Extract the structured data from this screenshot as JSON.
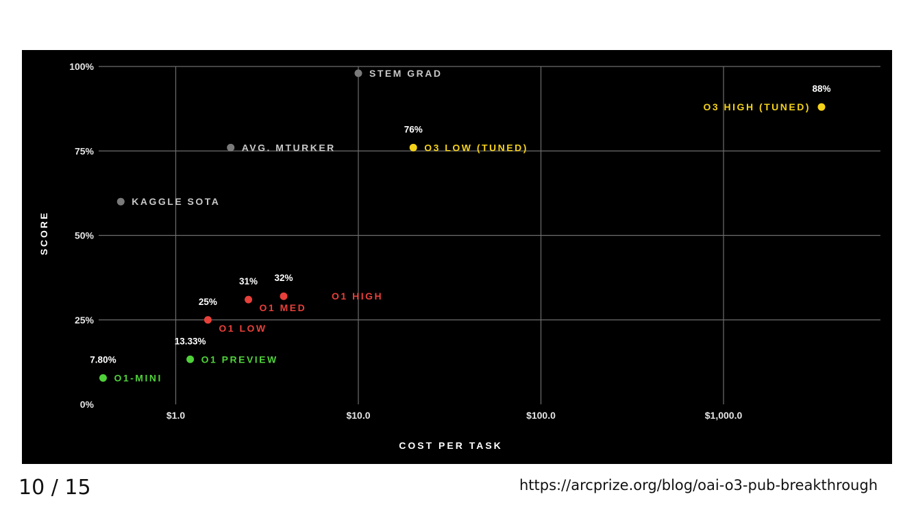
{
  "footer": {
    "slide_number": "10 / 15",
    "source_url": "https://arcprize.org/blog/oai-o3-pub-breakthrough"
  },
  "chart_data": {
    "type": "scatter",
    "title": "",
    "xlabel": "COST PER TASK",
    "ylabel": "SCORE",
    "x_scale": "log",
    "xlim": [
      0.4,
      8000
    ],
    "ylim": [
      0,
      100
    ],
    "x_ticks": [
      1,
      10,
      100,
      1000
    ],
    "x_tick_labels": [
      "$1.0",
      "$10.0",
      "$100.0",
      "$1,000.0"
    ],
    "y_ticks": [
      0,
      25,
      50,
      75,
      100
    ],
    "y_tick_labels": [
      "0%",
      "25%",
      "50%",
      "75%",
      "100%"
    ],
    "grid": true,
    "colors": {
      "background": "#000000",
      "grid": "#6e6e6e",
      "human": "#7a7a7a",
      "human_label": "#c8c8c8",
      "o1_preview_mini": "#4fd13a",
      "o1": "#e8403a",
      "o3": "#f5d21a"
    },
    "points": [
      {
        "name": "STEM GRAD",
        "x": 10,
        "y": 98,
        "value_label": "",
        "color": "#7a7a7a",
        "label_color": "#c8c8c8",
        "label_pos": "right"
      },
      {
        "name": "AVG. MTURKER",
        "x": 2,
        "y": 76,
        "value_label": "",
        "color": "#7a7a7a",
        "label_color": "#c8c8c8",
        "label_pos": "right"
      },
      {
        "name": "KAGGLE SOTA",
        "x": 0.5,
        "y": 60,
        "value_label": "",
        "color": "#7a7a7a",
        "label_color": "#c8c8c8",
        "label_pos": "right"
      },
      {
        "name": "O3 HIGH (TUNED)",
        "x": 3440,
        "y": 88,
        "value_label": "88%",
        "color": "#f5d21a",
        "label_color": "#f5d21a",
        "label_pos": "left"
      },
      {
        "name": "O3 LOW (TUNED)",
        "x": 20,
        "y": 76,
        "value_label": "76%",
        "color": "#f5d21a",
        "label_color": "#f5d21a",
        "label_pos": "right"
      },
      {
        "name": "O1 HIGH",
        "x": 3.9,
        "y": 32,
        "value_label": "32%",
        "color": "#e8403a",
        "label_color": "#e8403a",
        "label_pos": "far-right"
      },
      {
        "name": "O1 MED",
        "x": 2.5,
        "y": 31,
        "value_label": "31%",
        "color": "#e8403a",
        "label_color": "#e8403a",
        "label_pos": "below-right"
      },
      {
        "name": "O1 LOW",
        "x": 1.5,
        "y": 25,
        "value_label": "25%",
        "color": "#e8403a",
        "label_color": "#e8403a",
        "label_pos": "below-right"
      },
      {
        "name": "O1 PREVIEW",
        "x": 1.2,
        "y": 13.33,
        "value_label": "13.33%",
        "color": "#4fd13a",
        "label_color": "#4fd13a",
        "label_pos": "right"
      },
      {
        "name": "O1-MINI",
        "x": 0.4,
        "y": 7.8,
        "value_label": "7.80%",
        "color": "#4fd13a",
        "label_color": "#4fd13a",
        "label_pos": "right"
      }
    ]
  }
}
